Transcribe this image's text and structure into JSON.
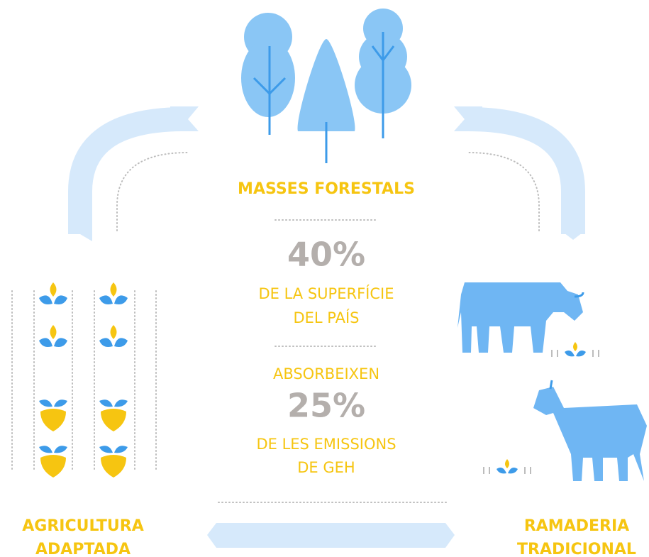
{
  "center": {
    "title": "MASSES FORESTALS",
    "stat1": "40%",
    "stat1_text": [
      "DE LA SUPERFÍCIE",
      "DEL PAÍS"
    ],
    "stat2_intro": "ABSORBEIXEN",
    "stat2": "25%",
    "stat2_text": [
      "DE LES EMISSIONS",
      "DE GEH"
    ]
  },
  "left": {
    "label": [
      "AGRICULTURA",
      "ADAPTADA"
    ]
  },
  "right": {
    "label": [
      "RAMADERIA",
      "TRADICIONAL"
    ]
  }
}
